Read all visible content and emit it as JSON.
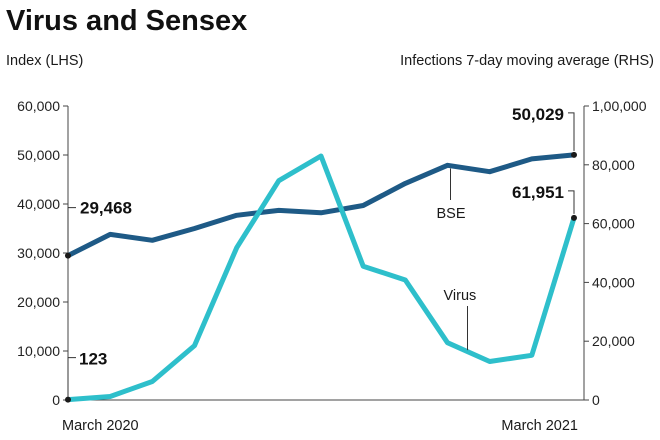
{
  "header": {
    "title": "Virus and Sensex",
    "left_axis_label": "Index (LHS)",
    "right_axis_label": "Infections 7-day moving average (RHS)"
  },
  "chart_data": {
    "type": "line",
    "title": "Virus and Sensex",
    "categories": [
      "March 2020",
      "",
      "",
      "",
      "",
      "",
      "",
      "",
      "",
      "",
      "",
      "",
      "March 2021"
    ],
    "x_labels": [
      "March 2020",
      "March 2021"
    ],
    "y_left": {
      "label": "Index (LHS)",
      "min": 0,
      "max": 60000,
      "ticks": [
        "0",
        "10,000",
        "20,000",
        "30,000",
        "40,000",
        "50,000",
        "60,000"
      ]
    },
    "y_right": {
      "label": "Infections 7-day moving average (RHS)",
      "min": 0,
      "max": 100000,
      "ticks": [
        "0",
        "20,000",
        "40,000",
        "60,000",
        "80,000",
        "1,00,000"
      ]
    },
    "series": [
      {
        "name": "BSE",
        "axis": "left",
        "color": "#1e5a86",
        "values": [
          29468,
          33800,
          32600,
          35000,
          37700,
          38700,
          38200,
          39700,
          44200,
          47900,
          46600,
          49200,
          50029
        ]
      },
      {
        "name": "Virus",
        "axis": "right",
        "color": "#2ebfcb",
        "values": [
          123,
          1200,
          6300,
          18500,
          51800,
          74600,
          83000,
          45500,
          40800,
          19500,
          13100,
          15200,
          61951
        ]
      }
    ],
    "annotations": [
      {
        "series": "BSE",
        "point": 0,
        "text": "29,468"
      },
      {
        "series": "BSE",
        "point": 12,
        "text": "50,029"
      },
      {
        "series": "Virus",
        "point": 0,
        "text": "123"
      },
      {
        "series": "Virus",
        "point": 12,
        "text": "61,951"
      }
    ],
    "series_labels": [
      "BSE",
      "Virus"
    ]
  }
}
